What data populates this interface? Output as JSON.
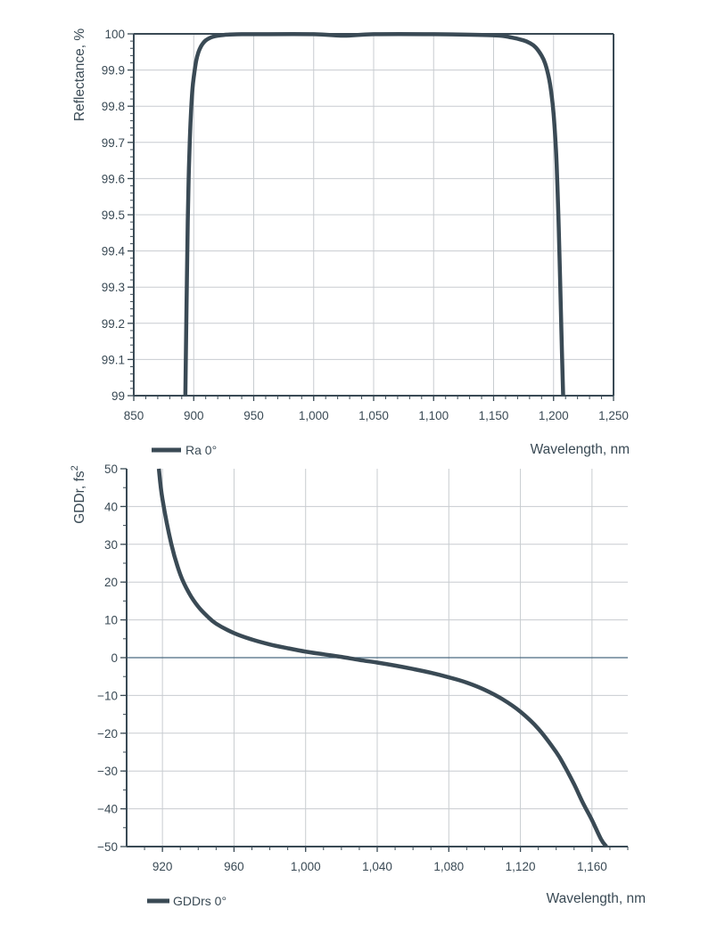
{
  "colors": {
    "series": "#3a4a55",
    "grid": "#c8ccd0",
    "axis": "#3a4a55",
    "text": "#3a4a55",
    "zero_line": "#4a6a80"
  },
  "chart_data": [
    {
      "type": "line",
      "xlabel": "Wavelength, nm",
      "ylabel": "Reflectance, %",
      "xlim": [
        850,
        1250
      ],
      "ylim": [
        99,
        100
      ],
      "x_ticks": [
        850,
        900,
        950,
        1000,
        1050,
        1100,
        1150,
        1200,
        1250
      ],
      "x_tick_labels": [
        "850",
        "900",
        "950",
        "1,000",
        "1,050",
        "1,100",
        "1,150",
        "1,200",
        "1,250"
      ],
      "y_ticks": [
        99,
        99.1,
        99.2,
        99.3,
        99.4,
        99.5,
        99.6,
        99.7,
        99.8,
        99.9,
        100
      ],
      "y_tick_labels": [
        "99",
        "99.1",
        "99.2",
        "99.3",
        "99.4",
        "99.5",
        "99.6",
        "99.7",
        "99.8",
        "99.9",
        "100"
      ],
      "grid": true,
      "legend_position": "bottom-left",
      "series": [
        {
          "name": "Ra 0°",
          "x": [
            893,
            894,
            895,
            896,
            897,
            898,
            899,
            900,
            902,
            904,
            906,
            908,
            910,
            913,
            916,
            920,
            925,
            930,
            940,
            950,
            1000,
            1025,
            1050,
            1100,
            1150,
            1165,
            1175,
            1180,
            1185,
            1190,
            1193,
            1196,
            1198,
            1200,
            1202,
            1203,
            1204,
            1205,
            1206,
            1207,
            1208
          ],
          "y": [
            99.0,
            99.25,
            99.48,
            99.63,
            99.73,
            99.8,
            99.85,
            99.88,
            99.925,
            99.95,
            99.965,
            99.975,
            99.982,
            99.988,
            99.992,
            99.995,
            99.997,
            99.998,
            99.999,
            99.999,
            99.999,
            99.995,
            99.999,
            99.999,
            99.996,
            99.99,
            99.982,
            99.975,
            99.963,
            99.94,
            99.918,
            99.88,
            99.84,
            99.78,
            99.68,
            99.6,
            99.5,
            99.38,
            99.25,
            99.12,
            99.0
          ]
        }
      ]
    },
    {
      "type": "line",
      "xlabel": "Wavelength, nm",
      "ylabel": "GDDr, fs",
      "ylabel_superscript": "2",
      "xlim": [
        900,
        1180
      ],
      "ylim": [
        -50,
        50
      ],
      "x_ticks": [
        920,
        960,
        1000,
        1040,
        1080,
        1120,
        1160
      ],
      "x_tick_labels": [
        "920",
        "960",
        "1,000",
        "1,040",
        "1,080",
        "1,120",
        "1,160"
      ],
      "y_ticks": [
        -50,
        -40,
        -30,
        -20,
        -10,
        0,
        10,
        20,
        30,
        40,
        50
      ],
      "y_tick_labels": [
        "−50",
        "−40",
        "−30",
        "−20",
        "−10",
        "0",
        "10",
        "20",
        "30",
        "40",
        "50"
      ],
      "grid": true,
      "zero_line": true,
      "legend_position": "bottom-left",
      "series": [
        {
          "name": "GDDrs 0°",
          "x": [
            918,
            920,
            925,
            930,
            935,
            940,
            945,
            950,
            960,
            970,
            980,
            990,
            1000,
            1010,
            1020,
            1030,
            1040,
            1050,
            1060,
            1070,
            1080,
            1090,
            1100,
            1110,
            1120,
            1130,
            1140,
            1145,
            1150,
            1155,
            1160,
            1165,
            1168
          ],
          "y": [
            50,
            42,
            30,
            22,
            17,
            13.5,
            11,
            9,
            6.5,
            4.8,
            3.5,
            2.5,
            1.6,
            0.9,
            0.2,
            -0.6,
            -1.3,
            -2.1,
            -3.0,
            -4.0,
            -5.2,
            -6.6,
            -8.5,
            -11,
            -14.3,
            -18.8,
            -25,
            -29,
            -33.5,
            -38.5,
            -43,
            -48,
            -50
          ]
        }
      ]
    }
  ]
}
